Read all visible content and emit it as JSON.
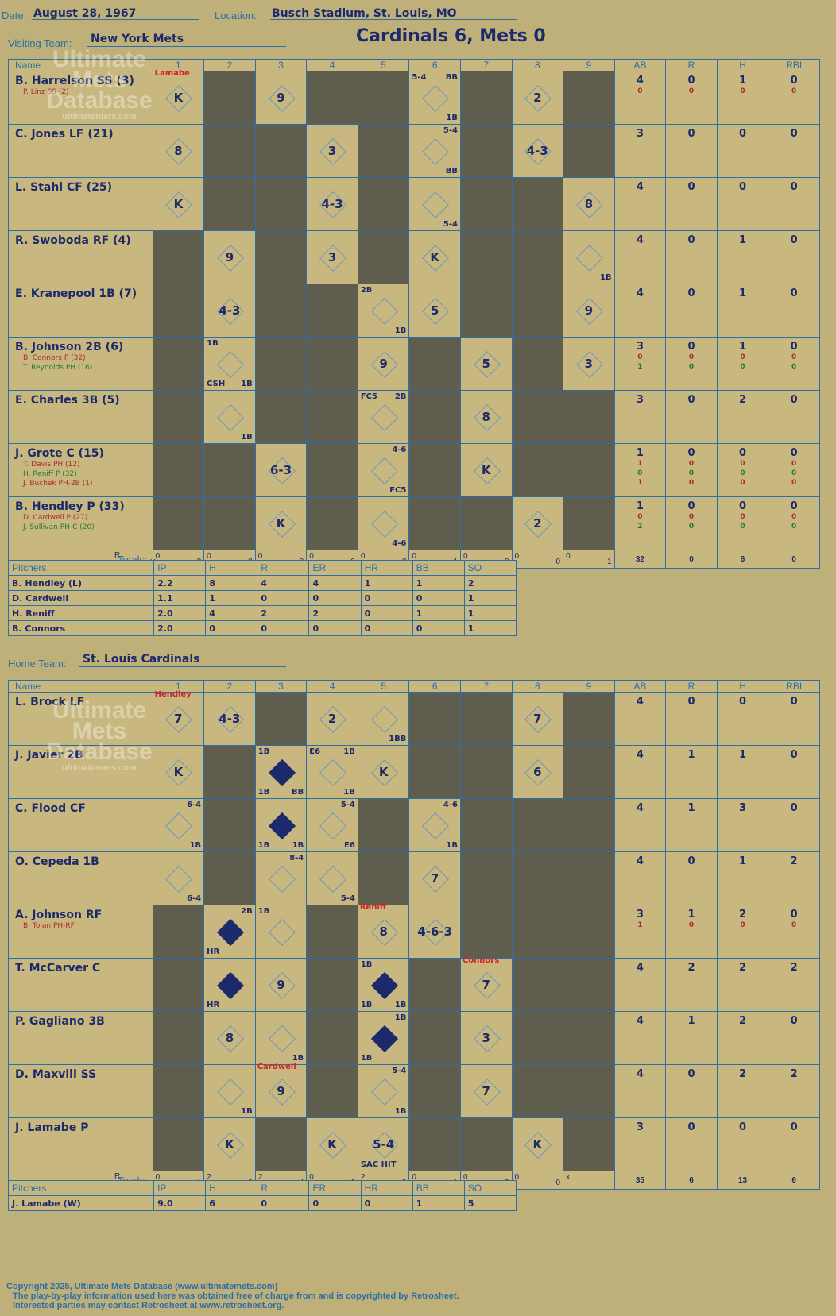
{
  "header": {
    "date_label": "Date:",
    "date": "August 28, 1967",
    "location_label": "Location:",
    "location": "Busch Stadium, St. Louis, MO",
    "visiting_label": "Visiting Team:",
    "visiting_team": "New York Mets",
    "score_title": "Cardinals 6, Mets 0",
    "home_label": "Home Team:",
    "home_team": "St. Louis Cardinals"
  },
  "columns": {
    "name": "Name",
    "innings": [
      "1",
      "2",
      "3",
      "4",
      "5",
      "6",
      "7",
      "8",
      "9"
    ],
    "stats": [
      "AB",
      "R",
      "H",
      "RBI"
    ],
    "totals": "Totals:",
    "r": "R",
    "h": "H"
  },
  "pitch_columns": {
    "name": "Pitchers",
    "stats": [
      "IP",
      "H",
      "R",
      "ER",
      "HR",
      "BB",
      "SO"
    ]
  },
  "watermark": {
    "line1": "Ultimate",
    "line2": "Mets",
    "line3": "Database",
    "url": "ultimatemets.com"
  },
  "visitors": {
    "rows": [
      {
        "name": "B. Harrelson SS (3)",
        "subs": [
          {
            "t": "P. Linz SS (2)",
            "c": "r"
          }
        ],
        "stats": [
          [
            "4",
            "0",
            "1",
            "0"
          ],
          [
            "0",
            "0",
            "0",
            "0"
          ]
        ],
        "cells": [
          {
            "c": "o",
            "r": "K",
            "pit": "Lamabe"
          },
          {
            "c": "g"
          },
          {
            "c": "o",
            "r": "9"
          },
          {
            "c": "g"
          },
          {
            "c": "g"
          },
          {
            "c": "o",
            "tl": "5-4",
            "tr": "BB",
            "br": "1B"
          },
          {
            "c": "g"
          },
          {
            "c": "o",
            "r": "2"
          },
          {
            "c": "g"
          }
        ]
      },
      {
        "name": "C. Jones LF (21)",
        "subs": [],
        "stats": [
          [
            "3",
            "0",
            "0",
            "0"
          ]
        ],
        "cells": [
          {
            "c": "o",
            "r": "8"
          },
          {
            "c": "g"
          },
          {
            "c": "g"
          },
          {
            "c": "o",
            "r": "3"
          },
          {
            "c": "g"
          },
          {
            "c": "o",
            "tr": "5-4",
            "br": "BB"
          },
          {
            "c": "g"
          },
          {
            "c": "o",
            "r": "4-3"
          },
          {
            "c": "g"
          }
        ]
      },
      {
        "name": "L. Stahl CF (25)",
        "subs": [],
        "stats": [
          [
            "4",
            "0",
            "0",
            "0"
          ]
        ],
        "cells": [
          {
            "c": "o",
            "r": "K"
          },
          {
            "c": "g"
          },
          {
            "c": "g"
          },
          {
            "c": "o",
            "r": "4-3"
          },
          {
            "c": "g"
          },
          {
            "c": "o",
            "br": "5-4"
          },
          {
            "c": "g"
          },
          {
            "c": "g"
          },
          {
            "c": "o",
            "r": "8"
          }
        ]
      },
      {
        "name": "R. Swoboda RF (4)",
        "subs": [],
        "stats": [
          [
            "4",
            "0",
            "1",
            "0"
          ]
        ],
        "cells": [
          {
            "c": "g"
          },
          {
            "c": "o",
            "r": "9"
          },
          {
            "c": "g"
          },
          {
            "c": "o",
            "r": "3"
          },
          {
            "c": "g"
          },
          {
            "c": "o",
            "r": "K"
          },
          {
            "c": "g"
          },
          {
            "c": "g"
          },
          {
            "c": "o",
            "br": "1B"
          }
        ]
      },
      {
        "name": "E. Kranepool 1B (7)",
        "subs": [],
        "stats": [
          [
            "4",
            "0",
            "1",
            "0"
          ]
        ],
        "cells": [
          {
            "c": "g"
          },
          {
            "c": "o",
            "r": "4-3"
          },
          {
            "c": "g"
          },
          {
            "c": "g"
          },
          {
            "c": "o",
            "tl": "2B",
            "br": "1B"
          },
          {
            "c": "o",
            "r": "5"
          },
          {
            "c": "g"
          },
          {
            "c": "g"
          },
          {
            "c": "o",
            "r": "9"
          }
        ]
      },
      {
        "name": "B. Johnson 2B (6)",
        "subs": [
          {
            "t": "B. Connors P (32)",
            "c": "r"
          },
          {
            "t": "T. Reynolds PH (16)",
            "c": "g"
          }
        ],
        "stats": [
          [
            "3",
            "0",
            "1",
            "0"
          ],
          [
            "0",
            "0",
            "0",
            "0"
          ],
          [
            "1",
            "0",
            "0",
            "0"
          ]
        ],
        "cells": [
          {
            "c": "g"
          },
          {
            "c": "o",
            "tl": "1B",
            "bl": "CSH",
            "br": "1B"
          },
          {
            "c": "g"
          },
          {
            "c": "g"
          },
          {
            "c": "o",
            "r": "9"
          },
          {
            "c": "g"
          },
          {
            "c": "o",
            "r": "5"
          },
          {
            "c": "g"
          },
          {
            "c": "o",
            "r": "3"
          }
        ]
      },
      {
        "name": "E. Charles 3B (5)",
        "subs": [],
        "stats": [
          [
            "3",
            "0",
            "2",
            "0"
          ]
        ],
        "cells": [
          {
            "c": "g"
          },
          {
            "c": "o",
            "br": "1B"
          },
          {
            "c": "g"
          },
          {
            "c": "g"
          },
          {
            "c": "o",
            "tl": "FC5",
            "tr": "2B"
          },
          {
            "c": "g"
          },
          {
            "c": "o",
            "r": "8"
          },
          {
            "c": "g"
          },
          {
            "c": "g"
          }
        ]
      },
      {
        "name": "J. Grote C (15)",
        "subs": [
          {
            "t": "T. Davis PH (12)",
            "c": "r"
          },
          {
            "t": "H. Reniff P (32)",
            "c": "g"
          },
          {
            "t": "J. Buchek PH-2B (1)",
            "c": "r"
          }
        ],
        "stats": [
          [
            "1",
            "0",
            "0",
            "0"
          ],
          [
            "1",
            "0",
            "0",
            "0"
          ],
          [
            "0",
            "0",
            "0",
            "0"
          ],
          [
            "1",
            "0",
            "0",
            "0"
          ]
        ],
        "cells": [
          {
            "c": "g"
          },
          {
            "c": "g"
          },
          {
            "c": "o",
            "r": "6-3"
          },
          {
            "c": "g"
          },
          {
            "c": "o",
            "tr": "4-6",
            "br": "FC5"
          },
          {
            "c": "g"
          },
          {
            "c": "o",
            "r": "K"
          },
          {
            "c": "g"
          },
          {
            "c": "g"
          }
        ]
      },
      {
        "name": "B. Hendley P (33)",
        "subs": [
          {
            "t": "D. Cardwell P (27)",
            "c": "r"
          },
          {
            "t": "J. Sullivan PH-C (20)",
            "c": "g"
          }
        ],
        "stats": [
          [
            "1",
            "0",
            "0",
            "0"
          ],
          [
            "0",
            "0",
            "0",
            "0"
          ],
          [
            "2",
            "0",
            "0",
            "0"
          ]
        ],
        "cells": [
          {
            "c": "g"
          },
          {
            "c": "g"
          },
          {
            "c": "o",
            "r": "K"
          },
          {
            "c": "g"
          },
          {
            "c": "o",
            "br": "4-6"
          },
          {
            "c": "g"
          },
          {
            "c": "g"
          },
          {
            "c": "o",
            "r": "2"
          },
          {
            "c": "g"
          }
        ]
      }
    ],
    "inning_totals": [
      [
        "0",
        "0"
      ],
      [
        "0",
        "2"
      ],
      [
        "0",
        "0"
      ],
      [
        "0",
        "0"
      ],
      [
        "0",
        "2"
      ],
      [
        "0",
        "1"
      ],
      [
        "0",
        "0"
      ],
      [
        "0",
        "0"
      ],
      [
        "0",
        "1"
      ]
    ],
    "totals": [
      "32",
      "0",
      "6",
      "0"
    ],
    "pitchers": [
      [
        "B. Hendley (L)",
        "2.2",
        "8",
        "4",
        "4",
        "1",
        "1",
        "2"
      ],
      [
        "D. Cardwell",
        "1.1",
        "1",
        "0",
        "0",
        "0",
        "0",
        "1"
      ],
      [
        "H. Reniff",
        "2.0",
        "4",
        "2",
        "2",
        "0",
        "1",
        "1"
      ],
      [
        "B. Connors",
        "2.0",
        "0",
        "0",
        "0",
        "0",
        "0",
        "1"
      ]
    ]
  },
  "home": {
    "rows": [
      {
        "name": "L. Brock LF",
        "subs": [],
        "stats": [
          [
            "4",
            "0",
            "0",
            "0"
          ]
        ],
        "cells": [
          {
            "c": "o",
            "r": "7",
            "pit": "Hendley"
          },
          {
            "c": "o",
            "r": "4-3"
          },
          {
            "c": "g"
          },
          {
            "c": "o",
            "r": "2"
          },
          {
            "c": "o",
            "br": "1BB"
          },
          {
            "c": "g"
          },
          {
            "c": "g"
          },
          {
            "c": "o",
            "r": "7"
          },
          {
            "c": "g"
          }
        ]
      },
      {
        "name": "J. Javier 2B",
        "subs": [],
        "stats": [
          [
            "4",
            "1",
            "1",
            "0"
          ]
        ],
        "cells": [
          {
            "c": "o",
            "r": "K"
          },
          {
            "c": "g"
          },
          {
            "c": "o",
            "run": true,
            "tl": "1B",
            "bl": "1B",
            "br": "BB"
          },
          {
            "c": "o",
            "tl": "E6",
            "tr": "1B",
            "br": "1B"
          },
          {
            "c": "o",
            "r": "K"
          },
          {
            "c": "g"
          },
          {
            "c": "g"
          },
          {
            "c": "o",
            "r": "6"
          },
          {
            "c": "g"
          }
        ]
      },
      {
        "name": "C. Flood CF",
        "subs": [],
        "stats": [
          [
            "4",
            "1",
            "3",
            "0"
          ]
        ],
        "cells": [
          {
            "c": "o",
            "tr": "6-4",
            "br": "1B"
          },
          {
            "c": "g"
          },
          {
            "c": "o",
            "run": true,
            "bl": "1B",
            "br": "1B"
          },
          {
            "c": "o",
            "tr": "5-4",
            "br": "E6"
          },
          {
            "c": "g"
          },
          {
            "c": "o",
            "tr": "4-6",
            "br": "1B"
          },
          {
            "c": "g"
          },
          {
            "c": "g"
          },
          {
            "c": "g"
          }
        ]
      },
      {
        "name": "O. Cepeda 1B",
        "subs": [],
        "stats": [
          [
            "4",
            "0",
            "1",
            "2"
          ]
        ],
        "cells": [
          {
            "c": "o",
            "br": "6-4"
          },
          {
            "c": "g"
          },
          {
            "c": "o",
            "tr": "8-4"
          },
          {
            "c": "o",
            "br": "5-4"
          },
          {
            "c": "g"
          },
          {
            "c": "o",
            "r": "7"
          },
          {
            "c": "g"
          },
          {
            "c": "g"
          },
          {
            "c": "g"
          }
        ]
      },
      {
        "name": "A. Johnson RF",
        "subs": [
          {
            "t": "B. Tolan PH-RF",
            "c": "r"
          }
        ],
        "stats": [
          [
            "3",
            "1",
            "2",
            "0"
          ],
          [
            "1",
            "0",
            "0",
            "0"
          ]
        ],
        "cells": [
          {
            "c": "g"
          },
          {
            "c": "o",
            "run": true,
            "tr": "2B",
            "bl": "HR"
          },
          {
            "c": "o",
            "tl": "1B"
          },
          {
            "c": "g"
          },
          {
            "c": "o",
            "r": "8",
            "pit": "Reniff"
          },
          {
            "c": "o",
            "r": "4-6-3"
          },
          {
            "c": "g"
          },
          {
            "c": "g"
          },
          {
            "c": "g"
          }
        ]
      },
      {
        "name": "T. McCarver C",
        "subs": [],
        "stats": [
          [
            "4",
            "2",
            "2",
            "2"
          ]
        ],
        "cells": [
          {
            "c": "g"
          },
          {
            "c": "o",
            "run": true,
            "bl": "HR"
          },
          {
            "c": "o",
            "r": "9"
          },
          {
            "c": "g"
          },
          {
            "c": "o",
            "run": true,
            "tl": "1B",
            "bl": "1B",
            "br": "1B"
          },
          {
            "c": "g"
          },
          {
            "c": "o",
            "r": "7",
            "pit": "Connors"
          },
          {
            "c": "g"
          },
          {
            "c": "g"
          }
        ]
      },
      {
        "name": "P. Gagliano 3B",
        "subs": [],
        "stats": [
          [
            "4",
            "1",
            "2",
            "0"
          ]
        ],
        "cells": [
          {
            "c": "g"
          },
          {
            "c": "o",
            "r": "8"
          },
          {
            "c": "o",
            "br": "1B"
          },
          {
            "c": "g"
          },
          {
            "c": "o",
            "run": true,
            "tr": "1B",
            "bl": "1B"
          },
          {
            "c": "g"
          },
          {
            "c": "o",
            "r": "3"
          },
          {
            "c": "g"
          },
          {
            "c": "g"
          }
        ]
      },
      {
        "name": "D. Maxvill SS",
        "subs": [],
        "stats": [
          [
            "4",
            "0",
            "2",
            "2"
          ]
        ],
        "cells": [
          {
            "c": "g"
          },
          {
            "c": "o",
            "br": "1B"
          },
          {
            "c": "o",
            "r": "9",
            "pit": "Cardwell"
          },
          {
            "c": "g"
          },
          {
            "c": "o",
            "tr": "5-4",
            "br": "1B"
          },
          {
            "c": "g"
          },
          {
            "c": "o",
            "r": "7"
          },
          {
            "c": "g"
          },
          {
            "c": "g"
          }
        ]
      },
      {
        "name": "J. Lamabe P",
        "subs": [],
        "stats": [
          [
            "3",
            "0",
            "0",
            "0"
          ]
        ],
        "cells": [
          {
            "c": "g"
          },
          {
            "c": "o",
            "r": "K"
          },
          {
            "c": "g"
          },
          {
            "c": "o",
            "r": "K"
          },
          {
            "c": "o",
            "r": "5-4",
            "bl": "SAC HIT"
          },
          {
            "c": "g"
          },
          {
            "c": "g"
          },
          {
            "c": "o",
            "r": "K"
          },
          {
            "c": "g"
          }
        ]
      }
    ],
    "inning_totals": [
      [
        "0",
        "1"
      ],
      [
        "2",
        "3"
      ],
      [
        "2",
        "4"
      ],
      [
        "0",
        "1"
      ],
      [
        "2",
        "3"
      ],
      [
        "0",
        "1"
      ],
      [
        "0",
        "0"
      ],
      [
        "0",
        "0"
      ],
      [
        "x",
        ""
      ]
    ],
    "totals": [
      "35",
      "6",
      "13",
      "6"
    ],
    "pitchers": [
      [
        "J. Lamabe (W)",
        "9.0",
        "6",
        "0",
        "0",
        "0",
        "1",
        "5"
      ]
    ]
  },
  "footer": {
    "line1": "Copyright 2025, Ultimate Mets Database (www.ultimatemets.com)",
    "line2": "The play-by-play information used here was obtained free of charge from and is copyrighted by Retrosheet.",
    "line3": "Interested parties may contact Retrosheet at www.retrosheet.org."
  }
}
